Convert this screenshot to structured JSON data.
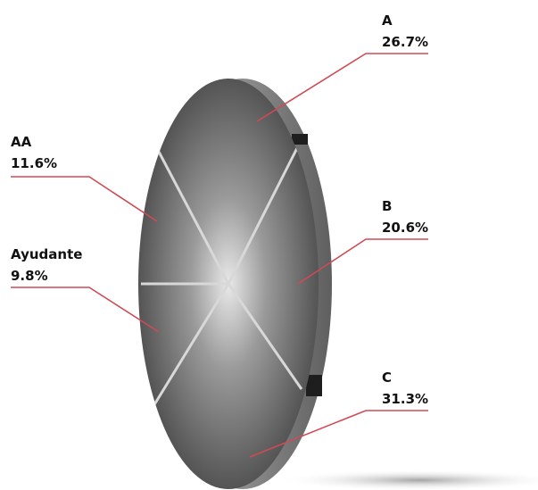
{
  "chart_data": {
    "type": "pie",
    "style": "3d-disc",
    "categories": [
      "A",
      "B",
      "C",
      "Ayudante",
      "AA"
    ],
    "values": [
      26.7,
      20.6,
      31.3,
      9.8,
      11.6
    ],
    "labels": [
      "26.7%",
      "20.6%",
      "31.3%",
      "9.8%",
      "11.6%"
    ],
    "unit": "%",
    "leader_color": "#d04a55",
    "disc_color": "#5a5a5a"
  }
}
